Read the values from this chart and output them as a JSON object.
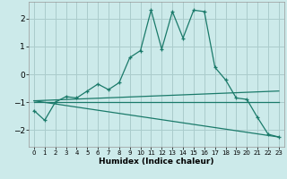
{
  "title": "",
  "xlabel": "Humidex (Indice chaleur)",
  "background_color": "#cceaea",
  "grid_color": "#aacccc",
  "line_color": "#1a7a6a",
  "xlim": [
    -0.5,
    23.5
  ],
  "ylim": [
    -2.6,
    2.6
  ],
  "x_ticks": [
    0,
    1,
    2,
    3,
    4,
    5,
    6,
    7,
    8,
    9,
    10,
    11,
    12,
    13,
    14,
    15,
    16,
    17,
    18,
    19,
    20,
    21,
    22,
    23
  ],
  "y_ticks": [
    -2,
    -1,
    0,
    1,
    2
  ],
  "series": [
    {
      "x": [
        0,
        1,
        2,
        3,
        4,
        5,
        6,
        7,
        8,
        9,
        10,
        11,
        12,
        13,
        14,
        15,
        16,
        17,
        18,
        19,
        20,
        21,
        22,
        23
      ],
      "y": [
        -1.3,
        -1.65,
        -1.0,
        -0.8,
        -0.85,
        -0.6,
        -0.35,
        -0.55,
        -0.3,
        0.6,
        0.85,
        2.3,
        0.9,
        2.25,
        1.3,
        2.3,
        2.25,
        0.25,
        -0.2,
        -0.85,
        -0.9,
        -1.55,
        -2.15,
        -2.25
      ],
      "has_markers": true
    },
    {
      "x": [
        0,
        23
      ],
      "y": [
        -0.95,
        -0.6
      ],
      "has_markers": false
    },
    {
      "x": [
        0,
        23
      ],
      "y": [
        -0.95,
        -2.25
      ],
      "has_markers": false
    },
    {
      "x": [
        0,
        23
      ],
      "y": [
        -1.0,
        -1.0
      ],
      "has_markers": false
    }
  ]
}
